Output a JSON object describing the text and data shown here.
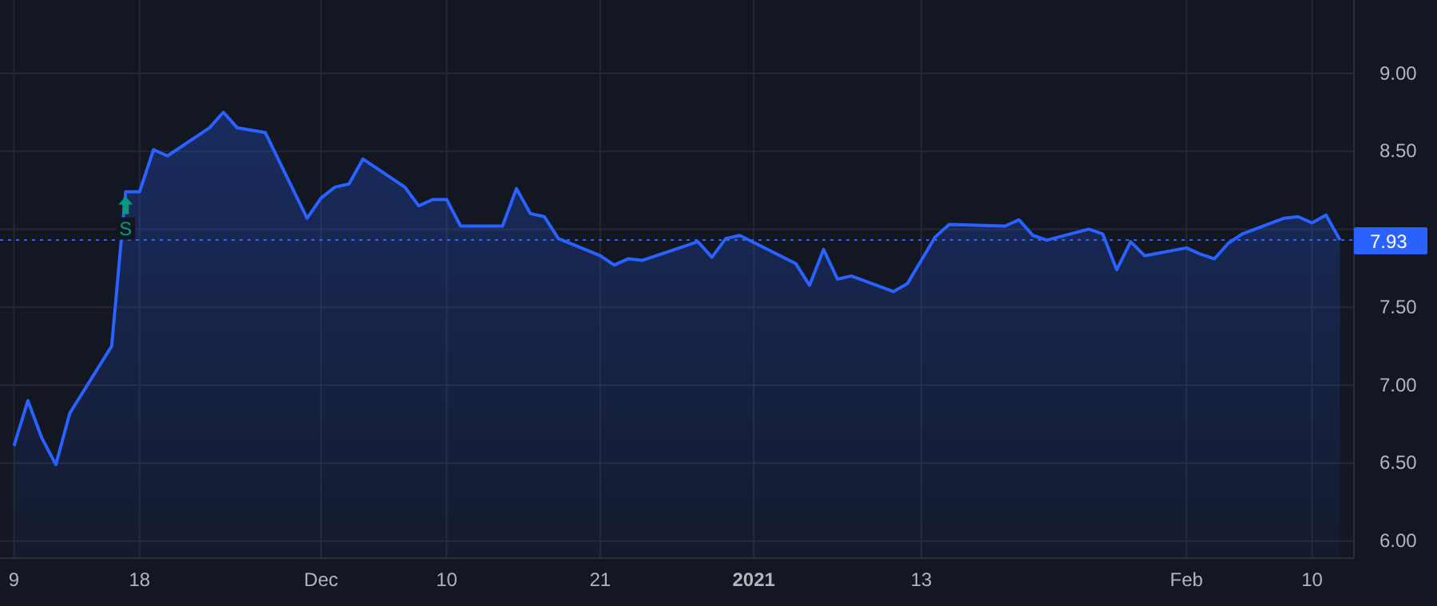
{
  "chart_data": {
    "type": "area",
    "x": [
      "2020-11-09",
      "2020-11-10",
      "2020-11-11",
      "2020-11-12",
      "2020-11-13",
      "2020-11-16",
      "2020-11-17",
      "2020-11-18",
      "2020-11-19",
      "2020-11-20",
      "2020-11-23",
      "2020-11-24",
      "2020-11-25",
      "2020-11-27",
      "2020-11-30",
      "2020-12-01",
      "2020-12-02",
      "2020-12-03",
      "2020-12-04",
      "2020-12-07",
      "2020-12-08",
      "2020-12-09",
      "2020-12-10",
      "2020-12-11",
      "2020-12-14",
      "2020-12-15",
      "2020-12-16",
      "2020-12-17",
      "2020-12-18",
      "2020-12-21",
      "2020-12-22",
      "2020-12-23",
      "2020-12-24",
      "2020-12-28",
      "2020-12-29",
      "2020-12-30",
      "2020-12-31",
      "2021-01-04",
      "2021-01-05",
      "2021-01-06",
      "2021-01-07",
      "2021-01-08",
      "2021-01-11",
      "2021-01-12",
      "2021-01-13",
      "2021-01-14",
      "2021-01-15",
      "2021-01-19",
      "2021-01-20",
      "2021-01-21",
      "2021-01-22",
      "2021-01-25",
      "2021-01-26",
      "2021-01-27",
      "2021-01-28",
      "2021-01-29",
      "2021-02-01",
      "2021-02-02",
      "2021-02-03",
      "2021-02-04",
      "2021-02-05",
      "2021-02-08",
      "2021-02-09",
      "2021-02-10",
      "2021-02-11",
      "2021-02-12"
    ],
    "series": [
      {
        "color": "#2962ff",
        "values": [
          6.61,
          6.9,
          6.66,
          6.49,
          6.82,
          7.25,
          8.24,
          8.24,
          8.51,
          8.47,
          8.65,
          8.75,
          8.65,
          8.62,
          8.07,
          8.2,
          8.27,
          8.29,
          8.45,
          8.27,
          8.15,
          8.19,
          8.19,
          8.02,
          8.02,
          8.26,
          8.1,
          8.08,
          7.94,
          7.83,
          7.77,
          7.81,
          7.8,
          7.92,
          7.82,
          7.94,
          7.96,
          7.78,
          7.64,
          7.87,
          7.68,
          7.7,
          7.6,
          7.65,
          7.8,
          7.95,
          8.03,
          8.02,
          8.06,
          7.96,
          7.93,
          8.0,
          7.97,
          7.74,
          7.92,
          7.83,
          7.88,
          7.84,
          7.81,
          7.91,
          7.97,
          8.07,
          8.08,
          8.04,
          8.09,
          7.93
        ]
      }
    ],
    "xlim": [
      "2020-11-08",
      "2021-02-13"
    ],
    "xticks": [
      {
        "value": "2020-11-09",
        "label": "9"
      },
      {
        "value": "2020-11-18",
        "label": "18"
      },
      {
        "value": "2020-12-01",
        "label": "Dec"
      },
      {
        "value": "2020-12-10",
        "label": "10"
      },
      {
        "value": "2020-12-21",
        "label": "21"
      },
      {
        "value": "2021-01-01",
        "label": "2021"
      },
      {
        "value": "2021-01-13",
        "label": "13"
      },
      {
        "value": "2021-02-01",
        "label": "Feb"
      },
      {
        "value": "2021-02-10",
        "label": "10"
      }
    ],
    "ylim": [
      5.89,
      9.47
    ],
    "yticks": [
      {
        "value": 6,
        "label": "6.00"
      },
      {
        "value": 6.5,
        "label": "6.50"
      },
      {
        "value": 7,
        "label": "7.00"
      },
      {
        "value": 7.5,
        "label": "7.50"
      },
      {
        "value": 8,
        "label": null
      },
      {
        "value": 8.5,
        "label": "8.50"
      },
      {
        "value": 9,
        "label": "9.00"
      }
    ],
    "grid": true,
    "line_style": "solid",
    "marker": "none",
    "tick_labels": "xy",
    "ref_lines": [
      {
        "axis": "y",
        "value": 7.93,
        "label": "7.93",
        "color": "#2962ff",
        "line_style": "dotted"
      }
    ],
    "annotations": [
      {
        "text": "S",
        "x": "2020-11-17",
        "y": 8.24
      }
    ]
  }
}
